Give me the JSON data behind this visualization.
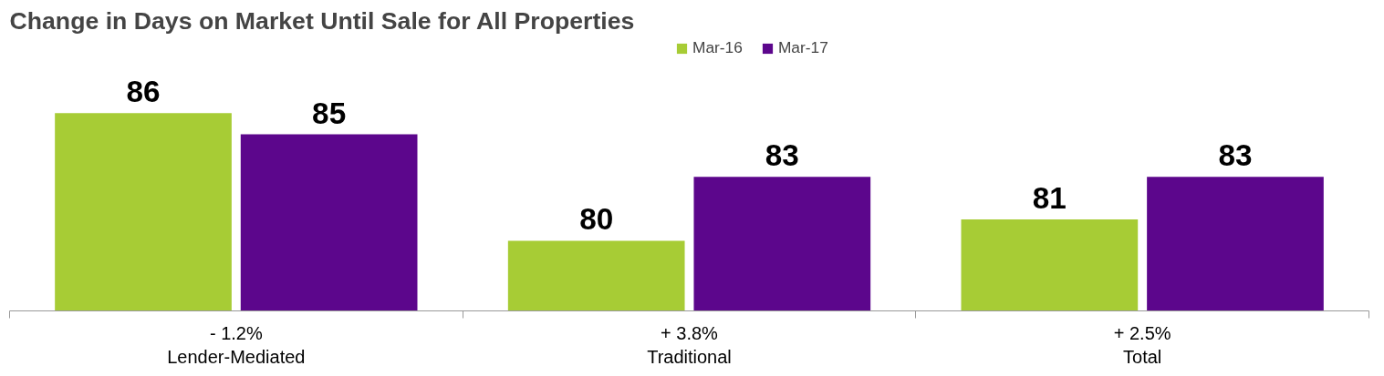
{
  "chart_data": {
    "type": "bar",
    "title": "Change in Days on Market Until Sale for All Properties",
    "categories": [
      "Lender-Mediated",
      "Traditional",
      "Total"
    ],
    "series": [
      {
        "name": "Mar-16",
        "color": "#a7cc35",
        "values": [
          86,
          80,
          81
        ]
      },
      {
        "name": "Mar-17",
        "color": "#5c068c",
        "values": [
          85,
          83,
          83
        ]
      }
    ],
    "annotations": [
      "- 1.2%",
      "+ 3.8%",
      "+ 2.5%"
    ],
    "ylim": [
      76.7,
      89.5
    ],
    "data_labels": true,
    "legend": "top",
    "grid": false
  }
}
